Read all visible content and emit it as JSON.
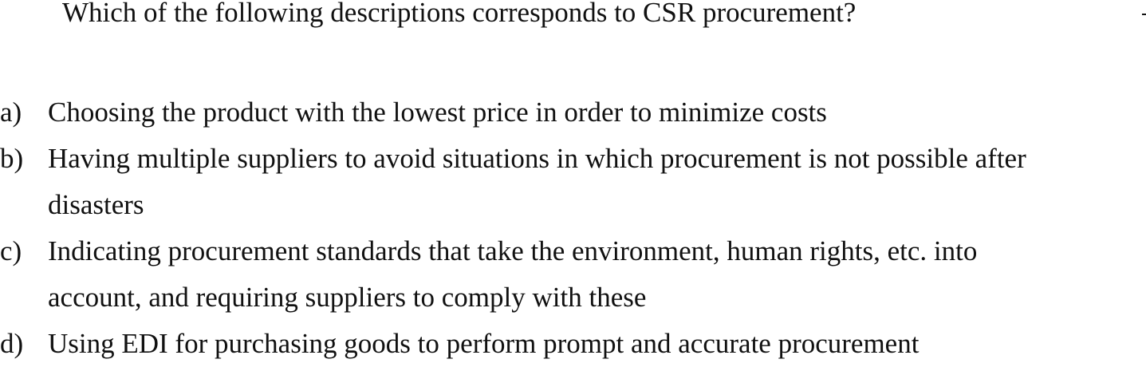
{
  "question": "Which of the following descriptions corresponds to CSR procurement?",
  "options": [
    {
      "letter": "a)",
      "lines": [
        "Choosing the product with the lowest price in order to minimize costs"
      ]
    },
    {
      "letter": "b)",
      "lines": [
        "Having multiple suppliers to avoid situations in which procurement is not possible after",
        "disasters"
      ]
    },
    {
      "letter": "c)",
      "lines": [
        "Indicating procurement standards that take the environment, human rights, etc. into",
        "account, and requiring suppliers to comply with these"
      ]
    },
    {
      "letter": "d)",
      "lines": [
        "Using EDI for purchasing goods to perform prompt and accurate procurement"
      ]
    }
  ]
}
